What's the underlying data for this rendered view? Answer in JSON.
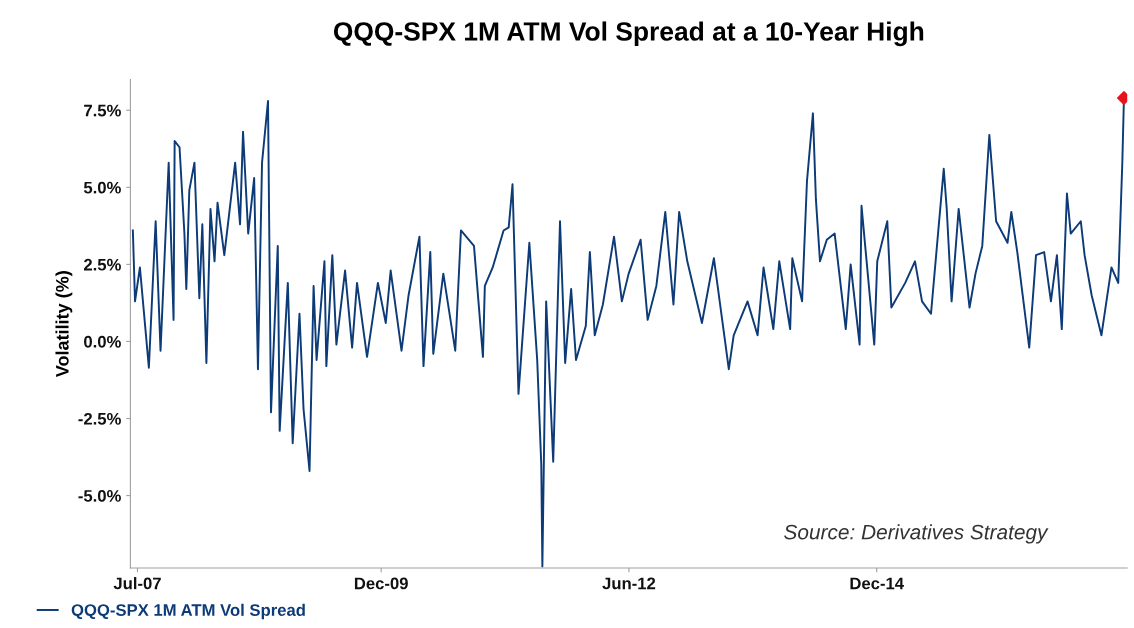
{
  "chart_data": {
    "type": "line",
    "title": "QQQ-SPX 1M ATM Vol Spread at a 10-Year High",
    "ylabel": "Volatility (%)",
    "annotations": [
      "Source: Derivatives Strategy"
    ],
    "legend": "bottom",
    "grid": false,
    "marker": "none",
    "line_style": "solid",
    "xlim": [
      "2007-06-05",
      "2017-06-25"
    ],
    "ylim": [
      -7.35,
      8.5
    ],
    "xticks": [
      {
        "value": "2007-07-01",
        "label": "Jul-07"
      },
      {
        "value": "2009-12-15",
        "label": "Dec-09"
      },
      {
        "value": "2012-06-15",
        "label": "Jun-12"
      },
      {
        "value": "2014-12-15",
        "label": "Dec-14"
      }
    ],
    "yticks": [
      {
        "value": -5.0,
        "label": "-5.0%"
      },
      {
        "value": -2.5,
        "label": "-2.5%"
      },
      {
        "value": 0.0,
        "label": "0.0%"
      },
      {
        "value": 2.5,
        "label": "2.5%"
      },
      {
        "value": 5.0,
        "label": "5.0%"
      },
      {
        "value": 7.5,
        "label": "7.5%"
      }
    ],
    "series": [
      {
        "name": "QQQ-SPX 1M ATM Vol Spread",
        "color": "#0d3b78",
        "x": [
          "2007-06-14",
          "2007-06-22",
          "2007-07-10",
          "2007-08-12",
          "2007-09-06",
          "2007-09-24",
          "2007-10-24",
          "2007-11-11",
          "2007-11-15",
          "2007-12-03",
          "2007-12-21",
          "2007-12-28",
          "2008-01-08",
          "2008-01-27",
          "2008-02-14",
          "2008-02-25",
          "2008-03-11",
          "2008-03-26",
          "2008-04-10",
          "2008-04-21",
          "2008-05-16",
          "2008-06-25",
          "2008-07-13",
          "2008-07-24",
          "2008-08-12",
          "2008-09-03",
          "2008-09-17",
          "2008-10-02",
          "2008-10-24",
          "2008-11-04",
          "2008-11-29",
          "2008-12-06",
          "2009-01-05",
          "2009-01-23",
          "2009-02-17",
          "2009-03-04",
          "2009-03-26",
          "2009-04-10",
          "2009-04-21",
          "2009-05-20",
          "2009-05-27",
          "2009-06-18",
          "2009-07-03",
          "2009-08-04",
          "2009-08-30",
          "2009-09-17",
          "2009-10-24",
          "2009-12-03",
          "2010-01-01",
          "2010-01-19",
          "2010-02-28",
          "2010-03-26",
          "2010-05-05",
          "2010-05-20",
          "2010-06-14",
          "2010-06-25",
          "2010-08-01",
          "2010-09-14",
          "2010-10-05",
          "2010-11-22",
          "2010-12-25",
          "2011-01-01",
          "2011-01-30",
          "2011-03-11",
          "2011-03-30",
          "2011-04-13",
          "2011-05-05",
          "2011-06-14",
          "2011-07-13",
          "2011-07-28",
          "2011-08-01",
          "2011-08-15",
          "2011-09-10",
          "2011-10-05",
          "2011-10-24",
          "2011-11-15",
          "2011-12-03",
          "2012-01-08",
          "2012-01-23",
          "2012-02-10",
          "2012-03-11",
          "2012-04-21",
          "2012-05-20",
          "2012-06-14",
          "2012-07-28",
          "2012-08-23",
          "2012-09-24",
          "2012-10-27",
          "2012-11-26",
          "2012-12-17",
          "2013-01-16",
          "2013-03-11",
          "2013-04-24",
          "2013-06-18",
          "2013-07-06",
          "2013-08-26",
          "2013-10-02",
          "2013-10-24",
          "2013-11-29",
          "2013-12-21",
          "2014-01-30",
          "2014-02-07",
          "2014-03-15",
          "2014-04-02",
          "2014-04-24",
          "2014-05-05",
          "2014-05-20",
          "2014-06-14",
          "2014-07-13",
          "2014-08-23",
          "2014-09-10",
          "2014-10-13",
          "2014-10-20",
          "2014-12-06",
          "2014-12-17",
          "2015-01-23",
          "2015-02-07",
          "2015-03-30",
          "2015-05-05",
          "2015-05-31",
          "2015-07-03",
          "2015-08-19",
          "2015-08-30",
          "2015-09-17",
          "2015-10-13",
          "2015-11-22",
          "2015-12-14",
          "2016-01-08",
          "2016-02-03",
          "2016-02-28",
          "2016-04-10",
          "2016-04-24",
          "2016-05-16",
          "2016-06-29",
          "2016-07-24",
          "2016-08-23",
          "2016-09-17",
          "2016-10-09",
          "2016-10-27",
          "2016-11-15",
          "2016-11-29",
          "2017-01-05",
          "2017-01-19",
          "2017-02-14",
          "2017-03-22",
          "2017-04-28",
          "2017-05-23",
          "2017-06-07",
          "2017-06-13"
        ],
        "values": [
          3.6,
          1.3,
          2.4,
          -0.85,
          3.9,
          -0.3,
          5.8,
          0.7,
          6.5,
          6.3,
          3.5,
          1.7,
          4.9,
          5.8,
          1.4,
          3.8,
          -0.7,
          4.3,
          2.6,
          4.5,
          2.8,
          5.8,
          3.8,
          6.8,
          3.5,
          5.3,
          -0.9,
          5.8,
          7.8,
          -2.3,
          3.1,
          -2.9,
          1.9,
          -3.3,
          0.9,
          -2.2,
          -4.2,
          1.8,
          -0.6,
          2.6,
          -0.8,
          2.8,
          -0.1,
          2.3,
          -0.2,
          1.9,
          -0.5,
          1.9,
          0.6,
          2.3,
          -0.3,
          1.5,
          3.4,
          -0.8,
          2.9,
          -0.4,
          2.2,
          -0.3,
          3.6,
          3.1,
          -0.5,
          1.8,
          2.4,
          3.6,
          3.7,
          5.1,
          -1.7,
          3.2,
          -0.6,
          -4.0,
          -7.3,
          1.3,
          -3.9,
          3.9,
          -0.7,
          1.7,
          -0.6,
          0.5,
          2.9,
          0.2,
          1.2,
          3.4,
          1.3,
          2.2,
          3.3,
          0.7,
          1.8,
          4.2,
          1.2,
          4.2,
          2.6,
          0.6,
          2.7,
          -0.9,
          0.2,
          1.3,
          0.2,
          2.4,
          0.4,
          2.6,
          0.4,
          2.7,
          1.3,
          5.2,
          7.4,
          4.6,
          2.6,
          3.3,
          3.5,
          0.4,
          2.5,
          -0.1,
          4.4,
          -0.1,
          2.6,
          3.9,
          1.1,
          1.9,
          2.6,
          1.3,
          0.9,
          5.6,
          4.3,
          1.3,
          4.3,
          1.1,
          2.2,
          3.1,
          6.7,
          3.9,
          3.2,
          4.2,
          2.9,
          -0.2,
          2.8,
          2.9,
          1.3,
          2.8,
          0.4,
          4.8,
          3.5,
          3.9,
          2.8,
          1.5,
          0.2,
          2.4,
          1.9,
          5.8,
          7.9
        ]
      },
      {
        "color": "#e8141b",
        "type": "scatter",
        "marker": "diamond",
        "x": [
          "2017-06-13"
        ],
        "values": [
          7.9
        ]
      }
    ]
  }
}
